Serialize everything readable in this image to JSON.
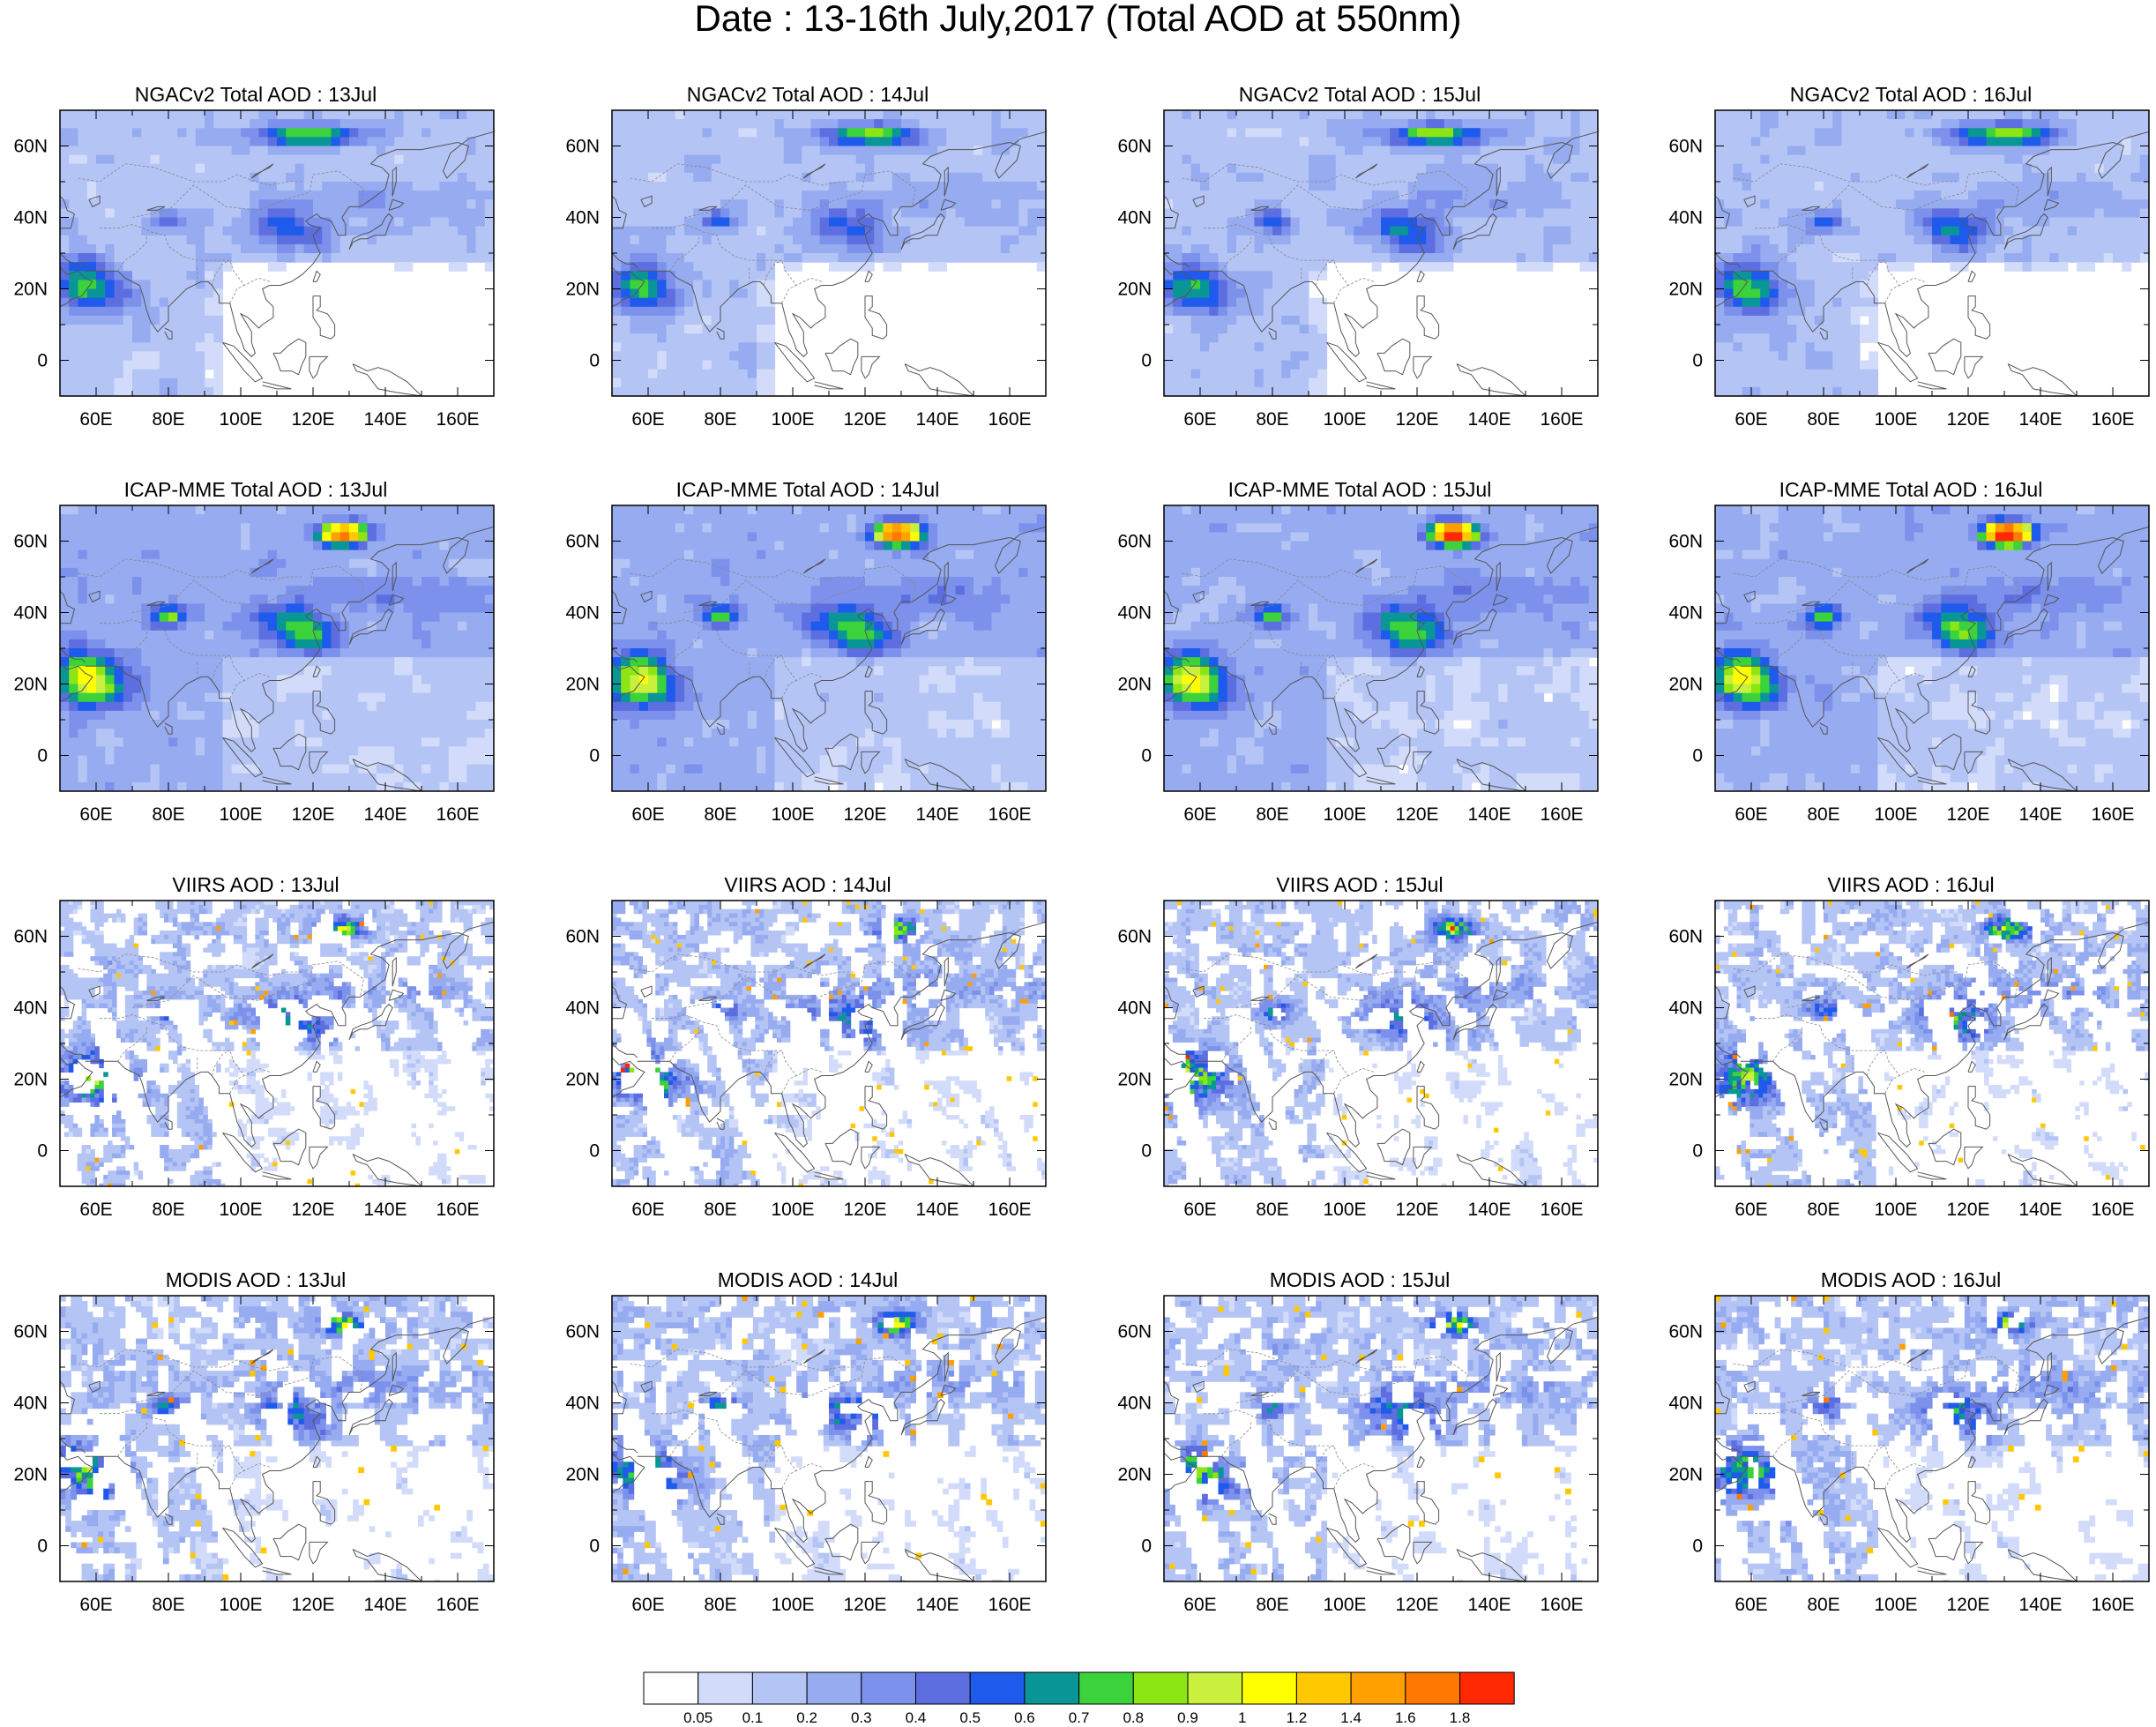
{
  "title": "Date : 13-16th July,2017 (Total AOD at 550nm)",
  "map": {
    "lon_range": [
      50,
      170
    ],
    "lat_range": [
      -10,
      70
    ],
    "x_ticks": [
      "60E",
      "80E",
      "100E",
      "120E",
      "140E",
      "160E"
    ],
    "x_tick_values": [
      60,
      80,
      100,
      120,
      140,
      160
    ],
    "y_ticks": [
      "0",
      "20N",
      "40N",
      "60N"
    ],
    "y_tick_values": [
      0,
      20,
      40,
      60
    ]
  },
  "panels": [
    {
      "title": "NGACv2 Total AOD : 13Jul",
      "product": "NGACv2",
      "day": 13
    },
    {
      "title": "NGACv2 Total AOD : 14Jul",
      "product": "NGACv2",
      "day": 14
    },
    {
      "title": "NGACv2 Total AOD : 15Jul",
      "product": "NGACv2",
      "day": 15
    },
    {
      "title": "NGACv2 Total AOD : 16Jul",
      "product": "NGACv2",
      "day": 16
    },
    {
      "title": "ICAP-MME Total AOD : 13Jul",
      "product": "ICAP-MME",
      "day": 13
    },
    {
      "title": "ICAP-MME Total AOD : 14Jul",
      "product": "ICAP-MME",
      "day": 14
    },
    {
      "title": "ICAP-MME Total AOD : 15Jul",
      "product": "ICAP-MME",
      "day": 15
    },
    {
      "title": "ICAP-MME Total AOD : 16Jul",
      "product": "ICAP-MME",
      "day": 16
    },
    {
      "title": "VIIRS AOD : 13Jul",
      "product": "VIIRS",
      "day": 13
    },
    {
      "title": "VIIRS AOD : 14Jul",
      "product": "VIIRS",
      "day": 14
    },
    {
      "title": "VIIRS AOD : 15Jul",
      "product": "VIIRS",
      "day": 15
    },
    {
      "title": "VIIRS AOD : 16Jul",
      "product": "VIIRS",
      "day": 16
    },
    {
      "title": "MODIS AOD : 13Jul",
      "product": "MODIS",
      "day": 13
    },
    {
      "title": "MODIS AOD : 14Jul",
      "product": "MODIS",
      "day": 14
    },
    {
      "title": "MODIS AOD : 15Jul",
      "product": "MODIS",
      "day": 15
    },
    {
      "title": "MODIS AOD : 16Jul",
      "product": "MODIS",
      "day": 16
    }
  ],
  "colorbar": {
    "colors": [
      "#ffffff",
      "#d2dcfa",
      "#b4c4f5",
      "#96abf0",
      "#7c91eb",
      "#5c6ee0",
      "#1e5aeb",
      "#0a9696",
      "#3cd23c",
      "#8ce614",
      "#c8f03c",
      "#ffff00",
      "#ffc800",
      "#ffa000",
      "#ff7800",
      "#ff2800"
    ],
    "labels": [
      "0.05",
      "0.1",
      "0.2",
      "0.3",
      "0.4",
      "0.5",
      "0.6",
      "0.7",
      "0.8",
      "0.9",
      "1",
      "1.2",
      "1.4",
      "1.6",
      "1.8"
    ]
  }
}
